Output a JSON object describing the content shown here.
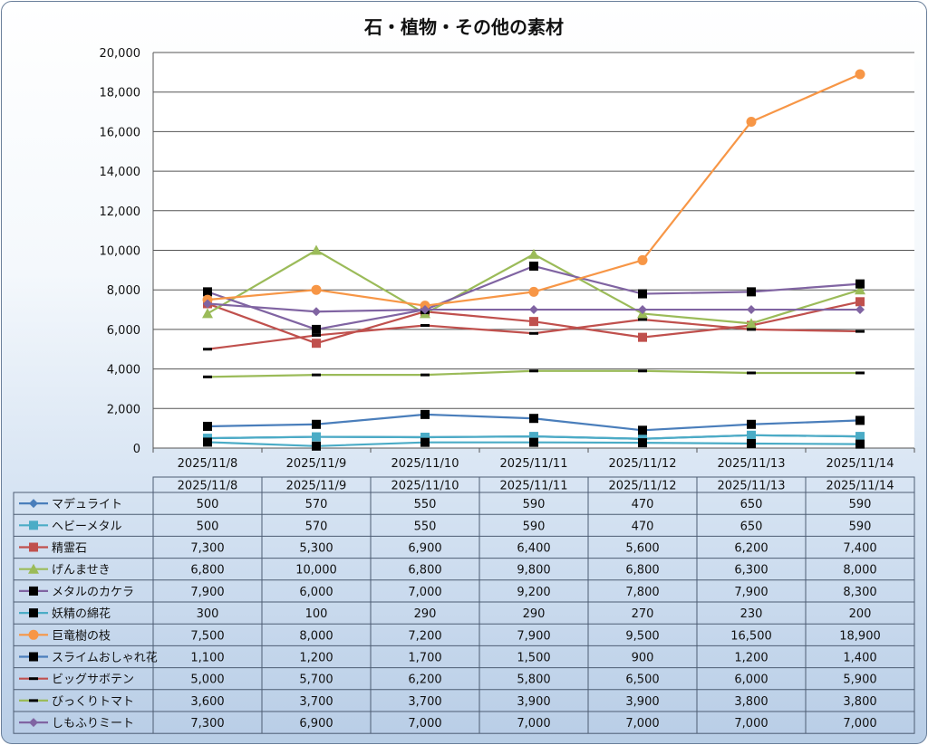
{
  "chart_data": {
    "type": "line",
    "title": "石・植物・その他の素材",
    "xlabel": "",
    "ylabel": "",
    "ylim": [
      0,
      20000
    ],
    "yticks": [
      "0",
      "2,000",
      "4,000",
      "6,000",
      "8,000",
      "10,000",
      "12,000",
      "14,000",
      "16,000",
      "18,000",
      "20,000"
    ],
    "grid": true,
    "legend": "data-table",
    "categories": [
      "2025/11/8",
      "2025/11/9",
      "2025/11/10",
      "2025/11/11",
      "2025/11/12",
      "2025/11/13",
      "2025/11/14"
    ],
    "series": [
      {
        "name": "マデュライト",
        "color": "#4a7ebb",
        "marker": "diamond",
        "values": [
          500,
          570,
          550,
          590,
          470,
          650,
          590
        ],
        "labels": [
          "500",
          "570",
          "550",
          "590",
          "470",
          "650",
          "590"
        ]
      },
      {
        "name": "ヘビーメタル",
        "color": "#4bacc6",
        "marker": "square",
        "values": [
          500,
          570,
          550,
          590,
          470,
          650,
          590
        ],
        "labels": [
          "500",
          "570",
          "550",
          "590",
          "470",
          "650",
          "590"
        ]
      },
      {
        "name": "精霊石",
        "color": "#c0504d",
        "marker": "square",
        "values": [
          7300,
          5300,
          6900,
          6400,
          5600,
          6200,
          7400
        ],
        "labels": [
          "7,300",
          "5,300",
          "6,900",
          "6,400",
          "5,600",
          "6,200",
          "7,400"
        ]
      },
      {
        "name": "げんませき",
        "color": "#9bbb59",
        "marker": "triangle",
        "values": [
          6800,
          10000,
          6800,
          9800,
          6800,
          6300,
          8000
        ],
        "labels": [
          "6,800",
          "10,000",
          "6,800",
          "9,800",
          "6,800",
          "6,300",
          "8,000"
        ]
      },
      {
        "name": "メタルのカケラ",
        "color": "#8064a2",
        "marker": "blacksquare",
        "values": [
          7900,
          6000,
          7000,
          9200,
          7800,
          7900,
          8300
        ],
        "labels": [
          "7,900",
          "6,000",
          "7,000",
          "9,200",
          "7,800",
          "7,900",
          "8,300"
        ]
      },
      {
        "name": "妖精の綿花",
        "color": "#4bacc6",
        "marker": "blacksquare",
        "values": [
          300,
          100,
          290,
          290,
          270,
          230,
          200
        ],
        "labels": [
          "300",
          "100",
          "290",
          "290",
          "270",
          "230",
          "200"
        ]
      },
      {
        "name": "巨竜樹の枝",
        "color": "#f79646",
        "marker": "circle",
        "values": [
          7500,
          8000,
          7200,
          7900,
          9500,
          16500,
          18900
        ],
        "labels": [
          "7,500",
          "8,000",
          "7,200",
          "7,900",
          "9,500",
          "16,500",
          "18,900"
        ]
      },
      {
        "name": "スライムおしゃれ花",
        "color": "#4a7ebb",
        "marker": "blacksquare",
        "values": [
          1100,
          1200,
          1700,
          1500,
          900,
          1200,
          1400
        ],
        "labels": [
          "1,100",
          "1,200",
          "1,700",
          "1,500",
          "900",
          "1,200",
          "1,400"
        ]
      },
      {
        "name": "ビッグサボテン",
        "color": "#c0504d",
        "marker": "dash",
        "values": [
          5000,
          5700,
          6200,
          5800,
          6500,
          6000,
          5900
        ],
        "labels": [
          "5,000",
          "5,700",
          "6,200",
          "5,800",
          "6,500",
          "6,000",
          "5,900"
        ]
      },
      {
        "name": "びっくりトマト",
        "color": "#9bbb59",
        "marker": "dash",
        "values": [
          3600,
          3700,
          3700,
          3900,
          3900,
          3800,
          3800
        ],
        "labels": [
          "3,600",
          "3,700",
          "3,700",
          "3,900",
          "3,900",
          "3,800",
          "3,800"
        ]
      },
      {
        "name": "しもふりミート",
        "color": "#8064a2",
        "marker": "diamond",
        "values": [
          7300,
          6900,
          7000,
          7000,
          7000,
          7000,
          7000
        ],
        "labels": [
          "7,300",
          "6,900",
          "7,000",
          "7,000",
          "7,000",
          "7,000",
          "7,000"
        ]
      }
    ]
  }
}
